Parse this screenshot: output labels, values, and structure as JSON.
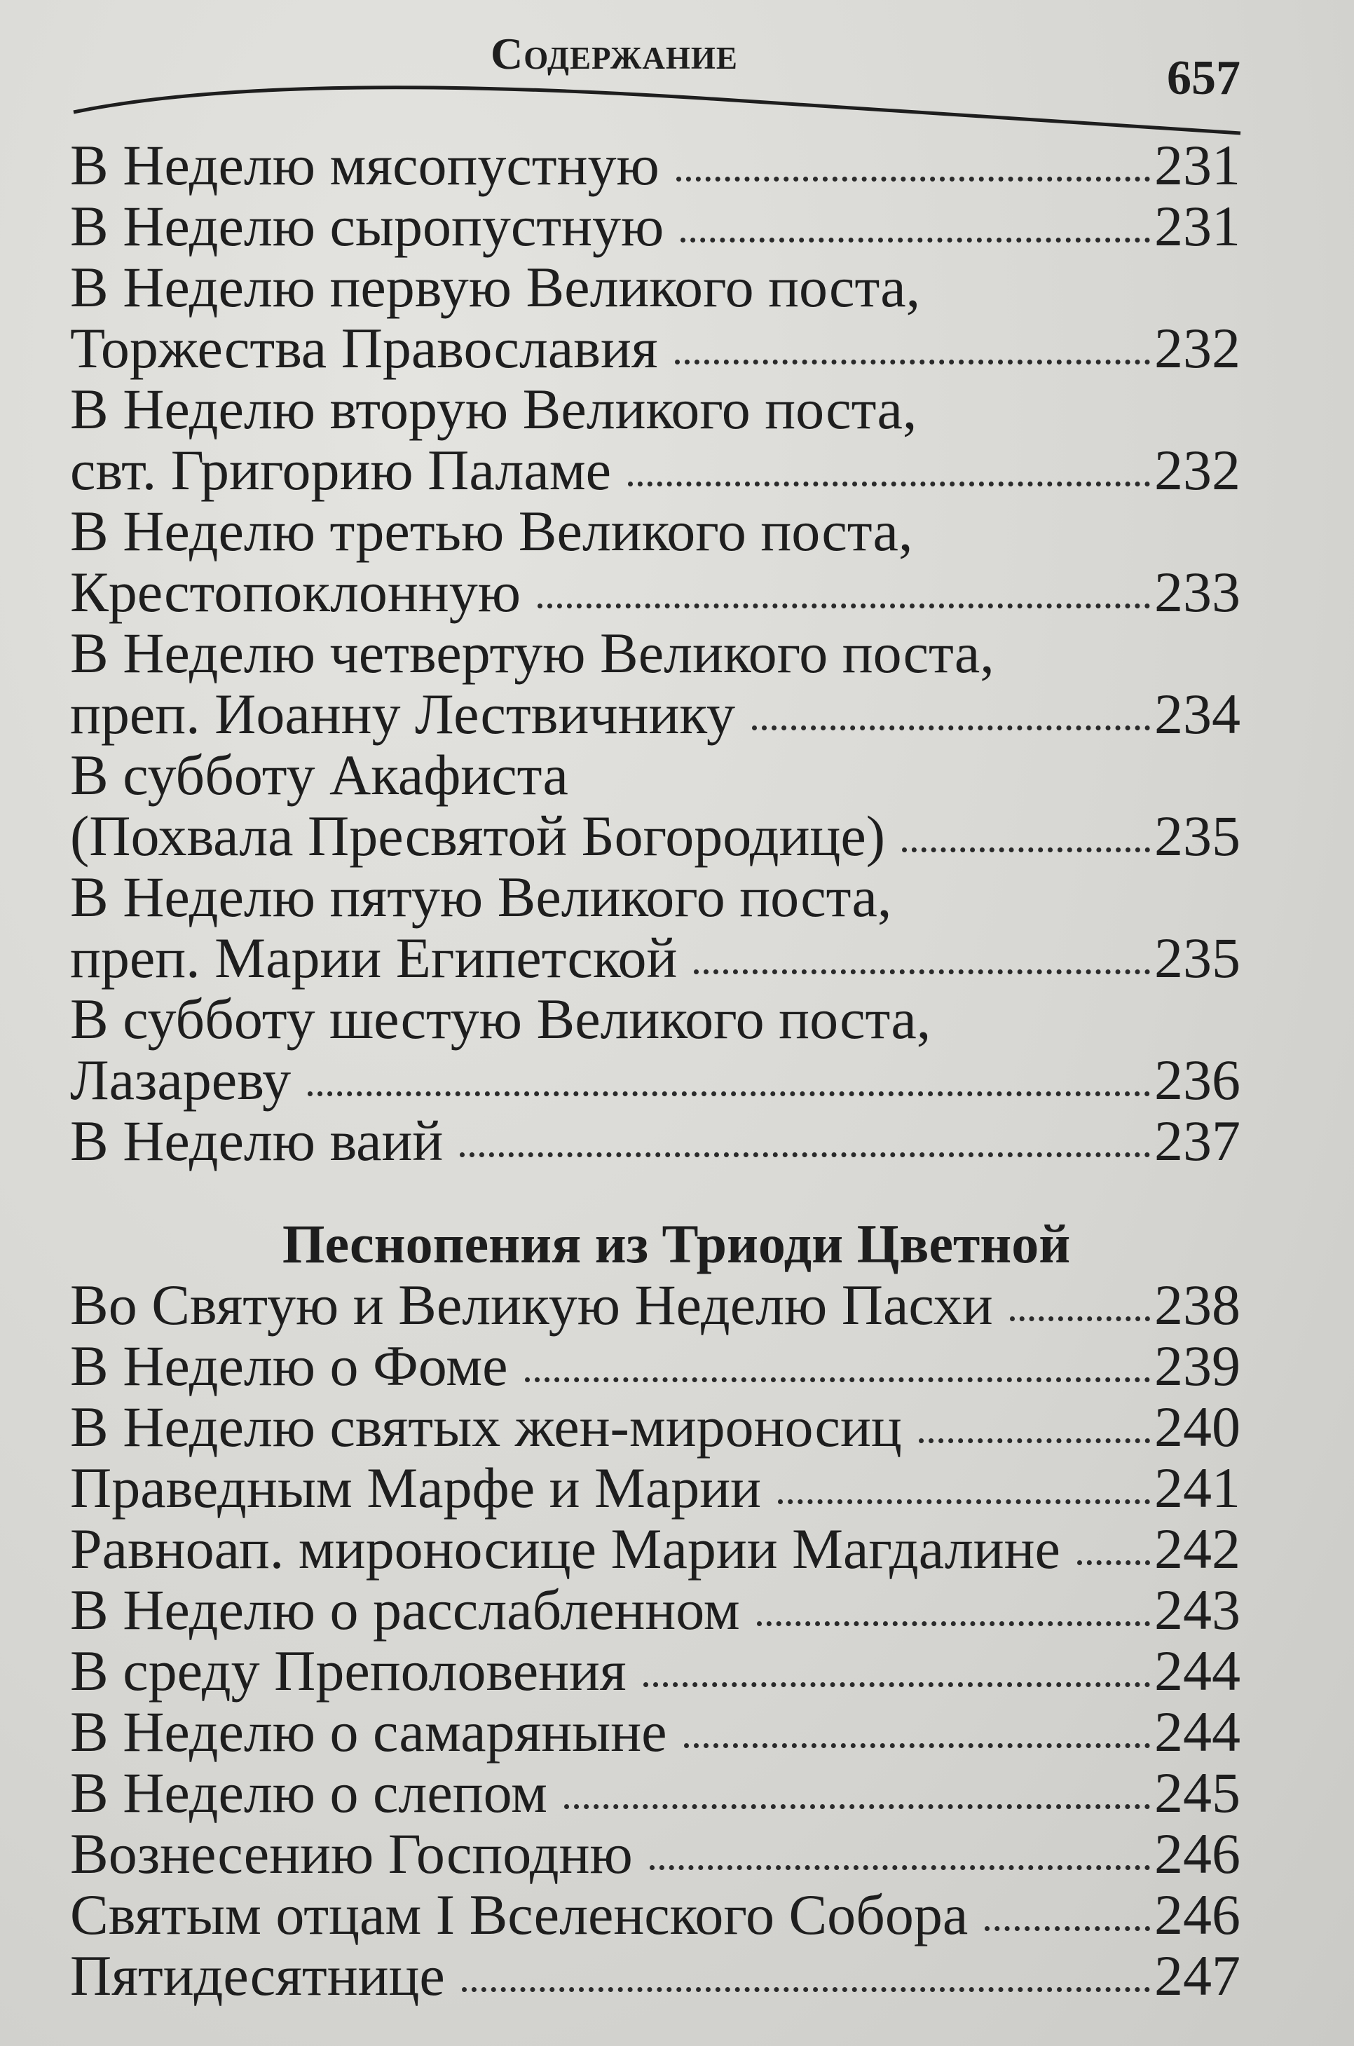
{
  "header": {
    "title": "Содержание",
    "page_number": "657"
  },
  "groups": [
    {
      "heading": "",
      "entries": [
        {
          "lines": [
            "В Неделю мясопустную"
          ],
          "page": "231"
        },
        {
          "lines": [
            "В Неделю сыропустную"
          ],
          "page": "231"
        },
        {
          "lines": [
            "В Неделю первую Великого поста,",
            "Торжества Православия"
          ],
          "page": "232"
        },
        {
          "lines": [
            "В Неделю вторую Великого поста,",
            "свт. Григорию Паламе"
          ],
          "page": "232"
        },
        {
          "lines": [
            "В Неделю третью Великого поста,",
            "Крестопоклонную"
          ],
          "page": "233"
        },
        {
          "lines": [
            "В Неделю четвертую Великого поста,",
            "преп. Иоанну Лествичнику"
          ],
          "page": "234"
        },
        {
          "lines": [
            "В субботу Акафиста",
            "(Похвала Пресвятой Богородице)"
          ],
          "page": "235"
        },
        {
          "lines": [
            "В Неделю пятую Великого поста,",
            "преп. Марии Египетской"
          ],
          "page": "235"
        },
        {
          "lines": [
            "В субботу шестую Великого поста,",
            "Лазареву"
          ],
          "page": "236"
        },
        {
          "lines": [
            "В Неделю ваий"
          ],
          "page": "237"
        }
      ]
    },
    {
      "heading": "Песнопения из Триоди Цветной",
      "entries": [
        {
          "lines": [
            "Во Святую и Великую Неделю Пасхи"
          ],
          "page": "238"
        },
        {
          "lines": [
            "В Неделю о Фоме"
          ],
          "page": "239"
        },
        {
          "lines": [
            "В Неделю святых жен-мироносиц"
          ],
          "page": "240"
        },
        {
          "lines": [
            "Праведным Марфе и Марии"
          ],
          "page": "241"
        },
        {
          "lines": [
            "Равноап. мироносице Марии Магдалине"
          ],
          "page": "242"
        },
        {
          "lines": [
            "В Неделю о расслабленном"
          ],
          "page": "243"
        },
        {
          "lines": [
            "В среду Преполовения"
          ],
          "page": "244"
        },
        {
          "lines": [
            "В Неделю о самаряныне"
          ],
          "page": "244"
        },
        {
          "lines": [
            "В Неделю о слепом"
          ],
          "page": "245"
        },
        {
          "lines": [
            "Вознесению Господню"
          ],
          "page": "246"
        },
        {
          "lines": [
            "Святым отцам I Вселенского Собора"
          ],
          "page": "246"
        },
        {
          "lines": [
            "Пятидесятнице"
          ],
          "page": "247"
        }
      ]
    }
  ]
}
